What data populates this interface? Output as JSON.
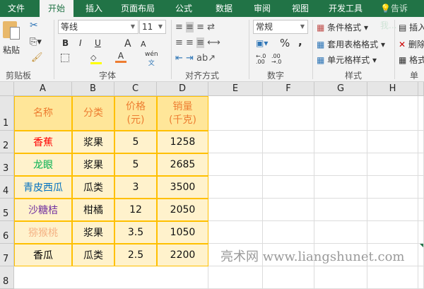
{
  "tabs": [
    "文件",
    "开始",
    "插入",
    "页面布局",
    "公式",
    "数据",
    "审阅",
    "视图",
    "开发工具"
  ],
  "active_tab": "开始",
  "tell_me": "告诉我...",
  "clipboard": {
    "paste": "粘贴",
    "group": "剪贴板"
  },
  "font": {
    "name": "等线",
    "size": "11",
    "bold": "B",
    "italic": "I",
    "underline": "U",
    "grow": "A",
    "shrink": "A",
    "phonetic": "wén",
    "group": "字体",
    "fill_color": "#ffff00",
    "font_color": "#ed7d31"
  },
  "alignment": {
    "group": "对齐方式"
  },
  "number": {
    "format": "常规",
    "percent": "%",
    "comma": ",",
    "group": "数字"
  },
  "styles": {
    "conditional": "条件格式",
    "table": "套用表格格式",
    "cell": "单元格样式",
    "group": "样式"
  },
  "cells": {
    "insert": "插入",
    "delete": "删除",
    "format": "格式",
    "group": "单元"
  },
  "columns": [
    "A",
    "B",
    "C",
    "D",
    "E",
    "F",
    "G",
    "H"
  ],
  "rows": [
    "1",
    "2",
    "3",
    "4",
    "5",
    "6",
    "7",
    "8"
  ],
  "table": {
    "headers": [
      "名称",
      "分类",
      "价格\n(元)",
      "销量\n(千克)"
    ],
    "rows": [
      {
        "name": "香蕉",
        "color": "#ff0000",
        "category": "浆果",
        "price": "5",
        "sales": "1258"
      },
      {
        "name": "龙眼",
        "color": "#00b050",
        "category": "浆果",
        "price": "5",
        "sales": "2685"
      },
      {
        "name": "青皮西瓜",
        "color": "#0070c0",
        "category": "瓜类",
        "price": "3",
        "sales": "3500"
      },
      {
        "name": "沙糖桔",
        "color": "#7030a0",
        "category": "柑橘",
        "price": "12",
        "sales": "2050"
      },
      {
        "name": "猕猴桃",
        "color": "#f4b183",
        "category": "浆果",
        "price": "3.5",
        "sales": "1050"
      },
      {
        "name": "香瓜",
        "color": "#000000",
        "category": "瓜类",
        "price": "2.5",
        "sales": "2200"
      }
    ]
  },
  "watermark": "亮术网 www.liangshunet.com"
}
